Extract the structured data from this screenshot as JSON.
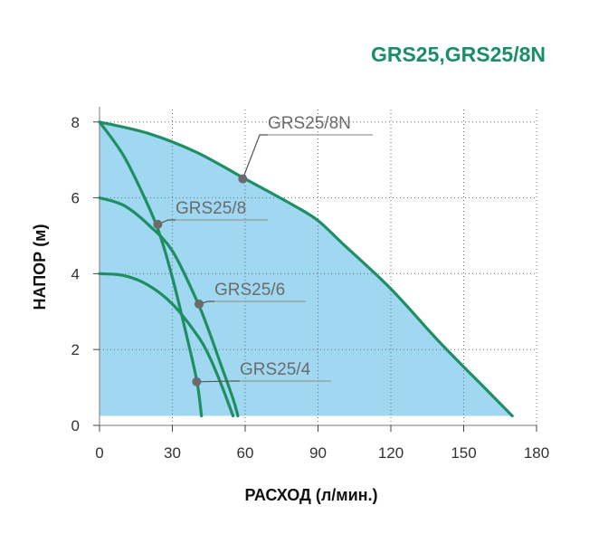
{
  "chart_data": {
    "type": "line",
    "title": "GRS25,GRS25/8N",
    "xlabel": "РАСХОД (л/мин.)",
    "ylabel": "НАПОР (м)",
    "xlim": [
      0,
      180
    ],
    "ylim": [
      0,
      8.4
    ],
    "xticks": [
      "0",
      "30",
      "60",
      "90",
      "120",
      "150",
      "180"
    ],
    "yticks": [
      "0",
      "2",
      "4",
      "6",
      "8"
    ],
    "grid": true,
    "colors": {
      "title": "#1a8e64",
      "curve": "#1f8f63",
      "operating_area": "#9fd8f0"
    },
    "operating_area": [
      [
        0,
        8.0
      ],
      [
        20,
        7.7
      ],
      [
        40,
        7.2
      ],
      [
        60,
        6.5
      ],
      [
        80,
        5.8
      ],
      [
        90,
        5.4
      ],
      [
        100,
        4.8
      ],
      [
        120,
        3.6
      ],
      [
        140,
        2.2
      ],
      [
        160,
        0.9
      ],
      [
        170,
        0.25
      ],
      [
        0,
        0.25
      ]
    ],
    "series": [
      {
        "name": "GRS25/8N",
        "points": [
          [
            0,
            8.0
          ],
          [
            20,
            7.7
          ],
          [
            40,
            7.2
          ],
          [
            60,
            6.5
          ],
          [
            80,
            5.8
          ],
          [
            90,
            5.4
          ],
          [
            100,
            4.8
          ],
          [
            120,
            3.6
          ],
          [
            140,
            2.2
          ],
          [
            160,
            0.9
          ],
          [
            170,
            0.25
          ]
        ],
        "marker": [
          59,
          6.5
        ]
      },
      {
        "name": "GRS25/8",
        "points": [
          [
            0,
            8.0
          ],
          [
            10,
            7.1
          ],
          [
            20,
            5.8
          ],
          [
            25,
            5.0
          ],
          [
            30,
            3.9
          ],
          [
            35,
            2.6
          ],
          [
            40,
            1.2
          ],
          [
            42,
            0.25
          ]
        ],
        "marker": [
          24,
          5.3
        ]
      },
      {
        "name": "GRS25/6",
        "points": [
          [
            0,
            6.0
          ],
          [
            10,
            5.8
          ],
          [
            20,
            5.3
          ],
          [
            30,
            4.6
          ],
          [
            40,
            3.3
          ],
          [
            45,
            2.5
          ],
          [
            50,
            1.6
          ],
          [
            55,
            0.7
          ],
          [
            57,
            0.25
          ]
        ],
        "marker": [
          41,
          3.2
        ]
      },
      {
        "name": "GRS25/4",
        "points": [
          [
            0,
            4.0
          ],
          [
            10,
            3.95
          ],
          [
            20,
            3.7
          ],
          [
            30,
            3.2
          ],
          [
            40,
            2.4
          ],
          [
            45,
            1.85
          ],
          [
            50,
            1.1
          ],
          [
            55,
            0.25
          ]
        ],
        "marker": [
          40,
          1.15
        ]
      }
    ]
  }
}
